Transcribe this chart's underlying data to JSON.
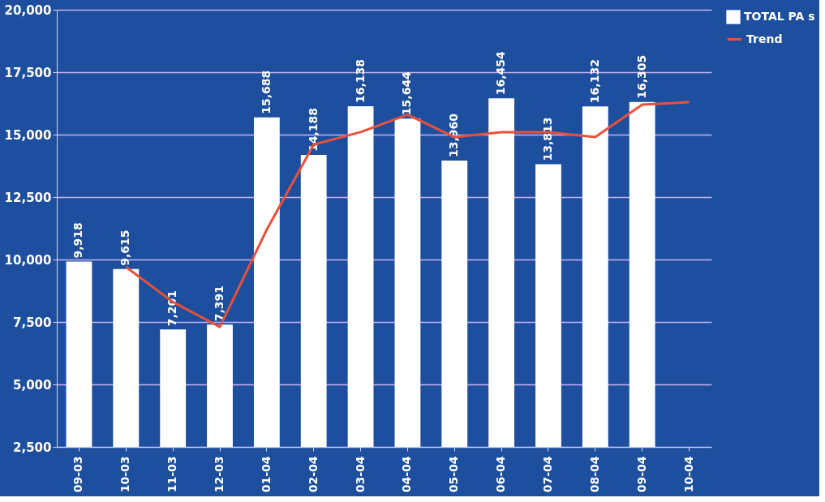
{
  "chart_data": {
    "type": "bar",
    "categories": [
      "09-03",
      "10-03",
      "11-03",
      "12-03",
      "01-04",
      "02-04",
      "03-04",
      "04-04",
      "05-04",
      "06-04",
      "07-04",
      "08-04",
      "09-04",
      "10-04"
    ],
    "series": [
      {
        "name": "TOTAL PA s",
        "color": "#ffffff",
        "values": [
          9918,
          9615,
          7201,
          7391,
          15688,
          14188,
          16138,
          15644,
          13960,
          16454,
          13813,
          16132,
          16305,
          null
        ],
        "value_labels": [
          "9,918",
          "9,615",
          "7,201",
          "7,391",
          "15,688",
          "14,188",
          "16,138",
          "15,644",
          "13,960",
          "16,454",
          "13,813",
          "16,132",
          "16,305",
          null
        ]
      },
      {
        "name": "Trend",
        "type": "line",
        "color": "#e8503a",
        "values": [
          null,
          9700,
          8300,
          7300,
          11200,
          14600,
          15100,
          15800,
          14900,
          15100,
          15100,
          14900,
          16200,
          16300
        ]
      }
    ],
    "ylim": [
      2500,
      20000
    ],
    "yticks": [
      {
        "value": 2500,
        "label": "2,500"
      },
      {
        "value": 5000,
        "label": "5,000"
      },
      {
        "value": 7500,
        "label": "7,500"
      },
      {
        "value": 10000,
        "label": "10,000"
      },
      {
        "value": 12500,
        "label": "12,500"
      },
      {
        "value": 15000,
        "label": "15,000"
      },
      {
        "value": 17500,
        "label": "17,500"
      },
      {
        "value": 20000,
        "label": "20,000"
      }
    ],
    "grid": "y",
    "legend": "right",
    "line_style": "solid",
    "marker": "none"
  }
}
